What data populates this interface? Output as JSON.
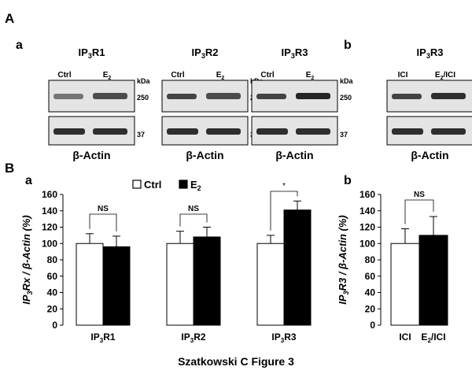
{
  "panel_A": {
    "label": "A",
    "sub_a": "a",
    "sub_b": "b",
    "kda": "kDa",
    "mw_high": "250",
    "mw_low": "37",
    "loading_control": "β-Actin",
    "blots": [
      {
        "title_base": "IP",
        "title_sub": "3",
        "title_rest": "R1",
        "lane1": "Ctrl",
        "lane2_base": "E",
        "lane2_sub": "2",
        "lane2_rest": ""
      },
      {
        "title_base": "IP",
        "title_sub": "3",
        "title_rest": "R2",
        "lane1": "Ctrl",
        "lane2_base": "E",
        "lane2_sub": "2",
        "lane2_rest": ""
      },
      {
        "title_base": "IP",
        "title_sub": "3",
        "title_rest": "R3",
        "lane1": "Ctrl",
        "lane2_base": "E",
        "lane2_sub": "2",
        "lane2_rest": ""
      },
      {
        "title_base": "IP",
        "title_sub": "3",
        "title_rest": "R3",
        "lane1": "ICI",
        "lane2_base": "E",
        "lane2_sub": "2",
        "lane2_rest": "/ICI"
      }
    ]
  },
  "panel_B": {
    "label": "B",
    "sub_a": "a",
    "sub_b": "b",
    "legend": {
      "ctrl": "Ctrl",
      "e2_base": "E",
      "e2_sub": "2"
    },
    "caption": "Szatkowski C Figure 3"
  },
  "chart_data": [
    {
      "type": "bar",
      "ylabel_parts": [
        "IP",
        "3",
        "Rx / β-Actin (%)"
      ],
      "ylim": [
        0,
        160
      ],
      "yticks": [
        "0",
        "20",
        "40",
        "60",
        "80",
        "100",
        "120",
        "140",
        "160"
      ],
      "categories": [
        {
          "base": "IP",
          "sub": "3",
          "rest": "R1"
        },
        {
          "base": "IP",
          "sub": "3",
          "rest": "R2"
        },
        {
          "base": "IP",
          "sub": "3",
          "rest": "R3"
        }
      ],
      "series": [
        {
          "name": "Ctrl",
          "color": "#ffffff",
          "values": [
            100,
            100,
            100
          ],
          "errors": [
            12,
            15,
            10
          ]
        },
        {
          "name": "E2",
          "color": "#000000",
          "values": [
            96,
            108,
            141
          ],
          "errors": [
            13,
            12,
            11
          ]
        }
      ],
      "significance": [
        "NS",
        "NS",
        "*"
      ]
    },
    {
      "type": "bar",
      "ylabel_parts": [
        "IP",
        "3",
        "R3 / β-Actin (%)"
      ],
      "ylim": [
        0,
        160
      ],
      "yticks": [
        "0",
        "20",
        "40",
        "60",
        "80",
        "100",
        "120",
        "140",
        "160"
      ],
      "categories": [
        {
          "base": "ICI",
          "sub": "",
          "rest": ""
        },
        {
          "base": "E",
          "sub": "2",
          "rest": "/ICI"
        }
      ],
      "series": [
        {
          "name": "",
          "color": "",
          "values": [
            100,
            110
          ],
          "errors": [
            18,
            23
          ]
        }
      ],
      "bar_colors": [
        "#ffffff",
        "#000000"
      ],
      "significance": [
        "NS"
      ]
    }
  ]
}
